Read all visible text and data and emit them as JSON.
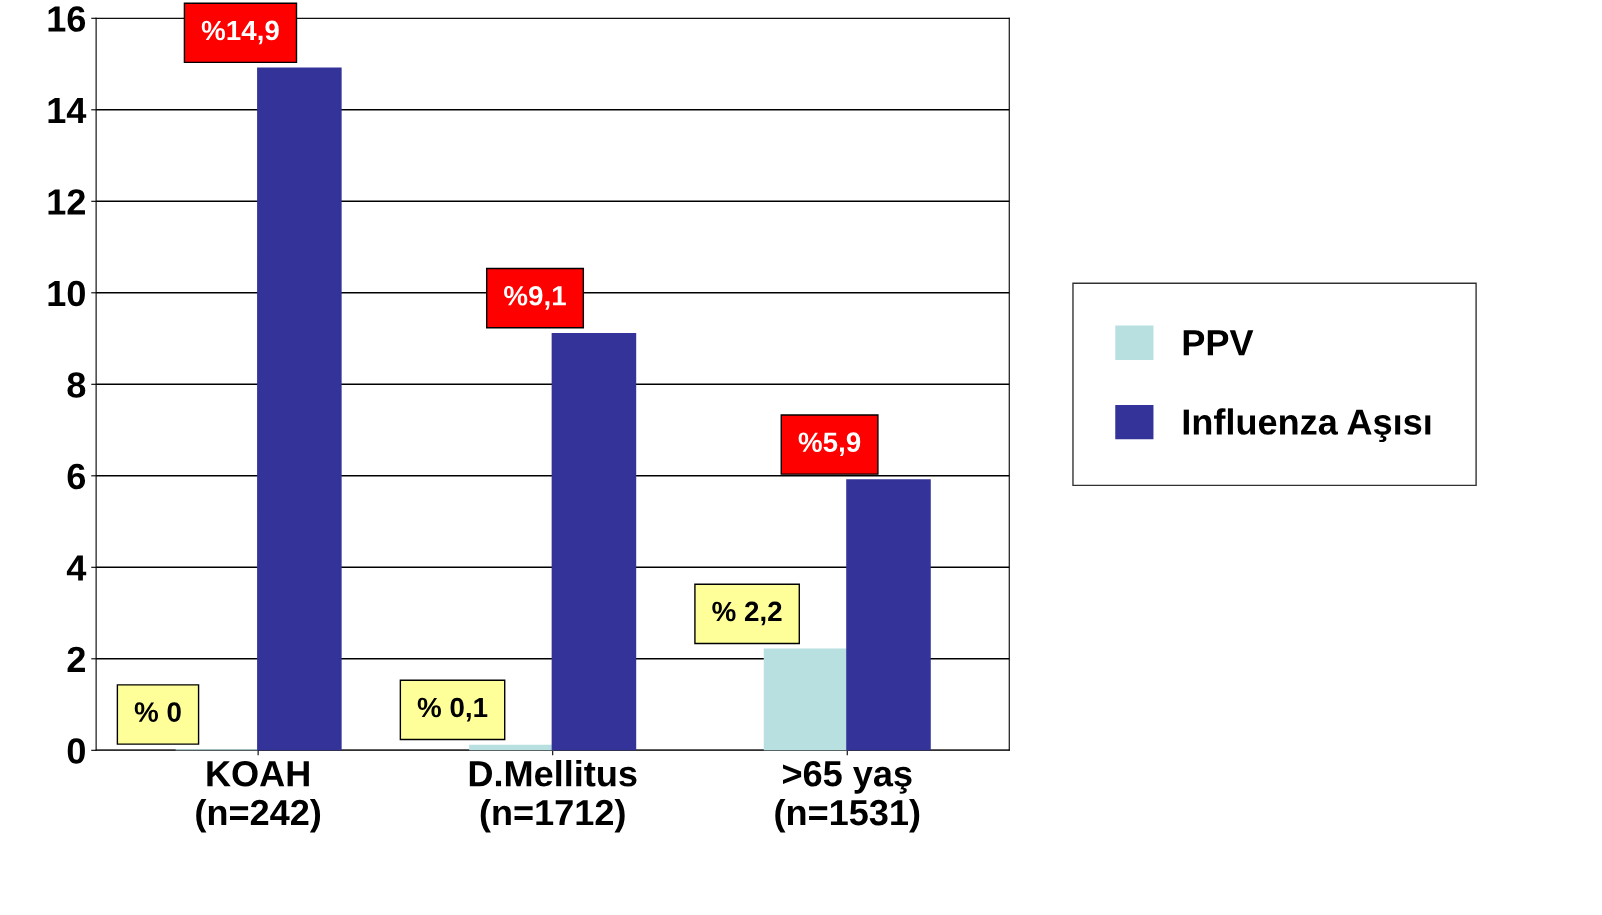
{
  "chart_data": {
    "type": "bar",
    "categories": [
      "KOAH\n(n=242)",
      "D.Mellitus\n(n=1712)",
      ">65 yaş\n(n=1531)"
    ],
    "series": [
      {
        "name": "PPV",
        "color": "#b8e0e0",
        "values": [
          0,
          0.1,
          2.2
        ],
        "value_labels": [
          "% 0",
          "% 0,1",
          "% 2,2"
        ]
      },
      {
        "name": "Influenza Aşısı",
        "color": "#333399",
        "values": [
          14.9,
          9.1,
          5.9
        ],
        "value_labels": [
          "%14,9",
          "%9,1",
          "%5,9"
        ]
      }
    ],
    "ylim": [
      0,
      16
    ],
    "yticks": [
      0,
      2,
      4,
      6,
      8,
      10,
      12,
      14,
      16
    ],
    "grid": "y",
    "legend": "right"
  }
}
